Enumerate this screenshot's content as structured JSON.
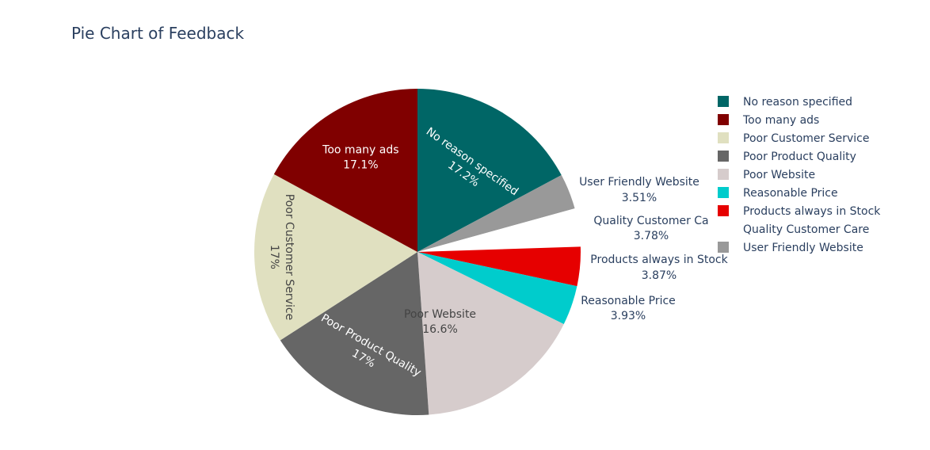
{
  "chart_data": {
    "type": "pie",
    "title": "Pie Chart of Feedback",
    "slices": [
      {
        "label": "No reason specified",
        "value": 17.2,
        "color": "#006666",
        "text": "17.2%"
      },
      {
        "label": "User Friendly Website",
        "value": 3.51,
        "color": "#999999",
        "text": "3.51%"
      },
      {
        "label": "Quality Customer Care",
        "value": 3.78,
        "color": "#ffffff",
        "text": "3.78%"
      },
      {
        "label": "Products always in Stock",
        "value": 3.87,
        "color": "#e60000",
        "text": "3.87%"
      },
      {
        "label": "Reasonable Price",
        "value": 3.93,
        "color": "#00cccc",
        "text": "3.93%"
      },
      {
        "label": "Poor Website",
        "value": 16.6,
        "color": "#d6cccc",
        "text": "16.6%"
      },
      {
        "label": "Poor Product Quality",
        "value": 17.0,
        "color": "#666666",
        "text": "17%"
      },
      {
        "label": "Poor Customer Service",
        "value": 17.0,
        "color": "#e0e0c0",
        "text": "17%"
      },
      {
        "label": "Too many ads",
        "value": 17.1,
        "color": "#800000",
        "text": "17.1%"
      }
    ],
    "outside_labels": [
      {
        "label": "User Friendly Website",
        "text": "3.51%"
      },
      {
        "label": "Quality Customer Ca",
        "text": "3.78%"
      },
      {
        "label": "Products always in Stock",
        "text": "3.87%"
      },
      {
        "label": "Reasonable Price",
        "text": "3.93%"
      }
    ],
    "legend": [
      {
        "label": "No reason specified",
        "color": "#006666"
      },
      {
        "label": "Too many ads",
        "color": "#800000"
      },
      {
        "label": "Poor Customer Service",
        "color": "#e0e0c0"
      },
      {
        "label": "Poor Product Quality",
        "color": "#666666"
      },
      {
        "label": "Poor Website",
        "color": "#d6cccc"
      },
      {
        "label": "Reasonable Price",
        "color": "#00cccc"
      },
      {
        "label": "Products always in Stock",
        "color": "#e60000"
      },
      {
        "label": "Quality Customer Care",
        "color": "#ffffff"
      },
      {
        "label": "User Friendly Website",
        "color": "#999999"
      }
    ],
    "legend_position": "right",
    "direction": "clockwise",
    "start": "top"
  }
}
